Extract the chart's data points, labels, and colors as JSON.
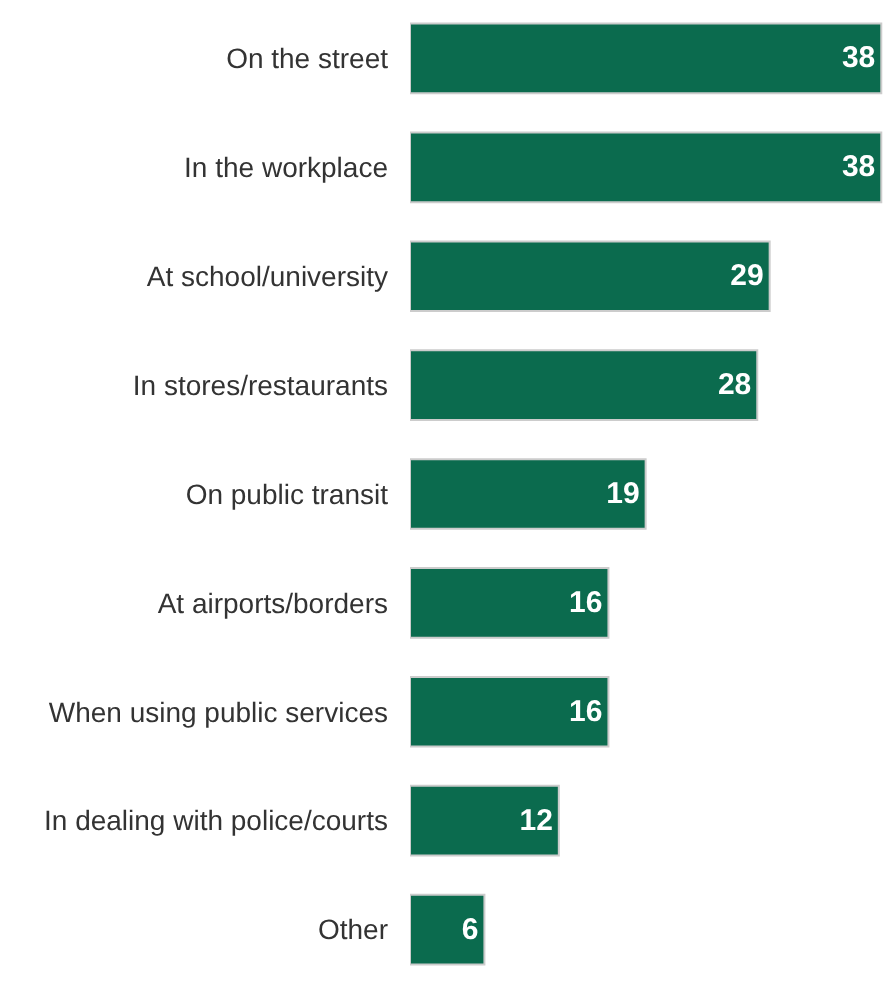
{
  "chart_data": {
    "type": "bar",
    "orientation": "horizontal",
    "data_labels": true,
    "categories": [
      "On the street",
      "In the workplace",
      "At school/university",
      "In stores/restaurants",
      "On public transit",
      "At airports/borders",
      "When using public services",
      "In dealing with police/courts",
      "Other"
    ],
    "values": [
      38,
      38,
      29,
      28,
      19,
      16,
      16,
      12,
      6
    ],
    "color": "#0b6b4e"
  }
}
